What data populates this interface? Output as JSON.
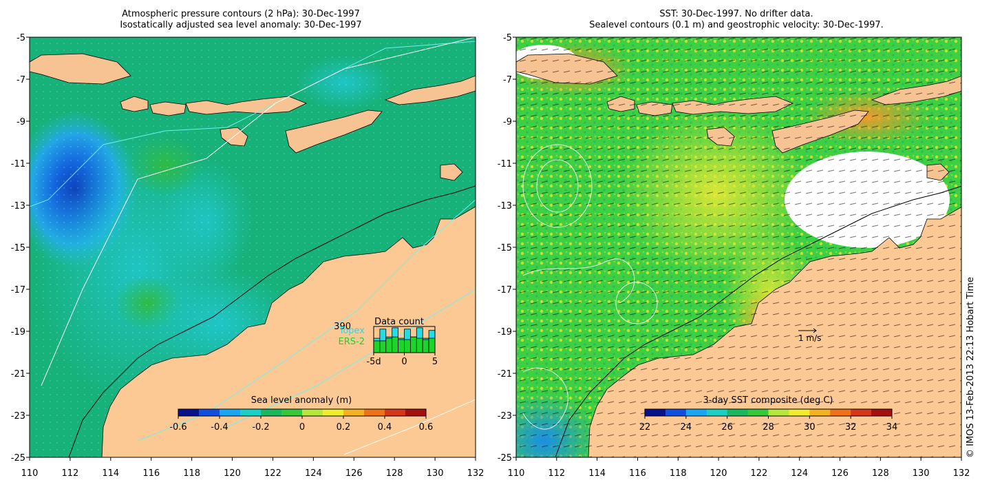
{
  "left_panel": {
    "title_line1": "Atmospheric pressure contours (2 hPa): 30-Dec-1997",
    "title_line2": "Isostatically adjusted sea level anomaly: 30-Dec-1997",
    "x_ticks": [
      "110",
      "112",
      "114",
      "116",
      "118",
      "120",
      "122",
      "124",
      "126",
      "128",
      "130",
      "132"
    ],
    "y_ticks": [
      "-5",
      "-7",
      "-9",
      "-11",
      "-13",
      "-15",
      "-17",
      "-19",
      "-21",
      "-23",
      "-25"
    ],
    "colorbar": {
      "label": "Sea level anomaly (m)",
      "ticks": [
        "-0.6",
        "-0.4",
        "-0.2",
        "0",
        "0.2",
        "0.4",
        "0.6"
      ],
      "colors": [
        "#08118c",
        "#0f4fe0",
        "#17a7f5",
        "#19d0c4",
        "#18b85f",
        "#34c83b",
        "#b8e63a",
        "#f0ec2e",
        "#f5b122",
        "#ef7218",
        "#d8361a",
        "#a50f10"
      ]
    },
    "data_count": {
      "title": "Data count",
      "max_label": "390",
      "series": [
        {
          "name": "Topex",
          "color": "#27dbe6"
        },
        {
          "name": "ERS-2",
          "color": "#1cd42c"
        }
      ],
      "x_ticks": [
        "-5d",
        "0",
        "5"
      ],
      "topex_levels": [
        0.55,
        0.9,
        0.6,
        0.95,
        0.55,
        0.9,
        0.6,
        0.95,
        0.55,
        0.85
      ],
      "ers_levels": [
        0.45,
        0.45,
        0.55,
        0.6,
        0.5,
        0.5,
        0.6,
        0.55,
        0.5,
        0.55
      ]
    }
  },
  "right_panel": {
    "title_line1": "SST: 30-Dec-1997. No drifter data.",
    "title_line2": "Sealevel contours (0.1 m) and geostrophic velocity: 30-Dec-1997.",
    "x_ticks": [
      "110",
      "112",
      "114",
      "116",
      "118",
      "120",
      "122",
      "124",
      "126",
      "128",
      "130",
      "132"
    ],
    "y_ticks": [
      "-5",
      "-7",
      "-9",
      "-11",
      "-13",
      "-15",
      "-17",
      "-19",
      "-21",
      "-23",
      "-25"
    ],
    "velocity_scale_label": "1 m/s",
    "colorbar": {
      "label": "3-day SST composite (deg C)",
      "ticks": [
        "22",
        "24",
        "26",
        "28",
        "30",
        "32",
        "34"
      ],
      "colors": [
        "#08118c",
        "#0f4fe0",
        "#17a7f5",
        "#19d0c4",
        "#18b85f",
        "#34c83b",
        "#b8e63a",
        "#f0ec2e",
        "#f5b122",
        "#ef7218",
        "#d8361a",
        "#a50f10"
      ]
    }
  },
  "credit": "© IMOS 13-Feb-2013 22:13 Hobart Time",
  "colors": {
    "land": "#fcc994",
    "sea_level_ocean": "#17b17a",
    "sst_ocean": "#3fcf45",
    "island": "#f7c393"
  }
}
